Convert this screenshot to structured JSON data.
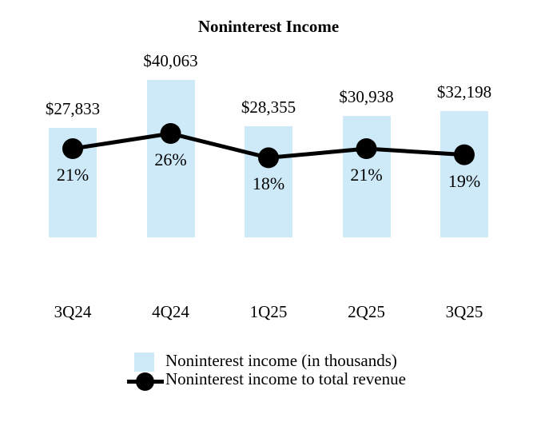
{
  "chart_data": {
    "type": "bar",
    "title": "Noninterest Income",
    "categories": [
      "3Q24",
      "4Q24",
      "1Q25",
      "2Q25",
      "3Q25"
    ],
    "series": [
      {
        "name": "Noninterest income (in thousands)",
        "kind": "bar",
        "color": "#cee9f8",
        "values": [
          27833,
          40063,
          28355,
          30938,
          32198
        ],
        "value_labels": [
          "$27,833",
          "$40,063",
          "$28,355",
          "$30,938",
          "$32,198"
        ]
      },
      {
        "name": "Noninterest income to total revenue",
        "kind": "line",
        "color": "#000000",
        "values": [
          21,
          26,
          18,
          21,
          19
        ],
        "value_labels": [
          "21%",
          "26%",
          "18%",
          "21%",
          "19%"
        ]
      }
    ],
    "legend_position": "bottom",
    "axes_visible": false,
    "grid": false,
    "text_color": "#000000",
    "background_color": "#ffffff"
  }
}
